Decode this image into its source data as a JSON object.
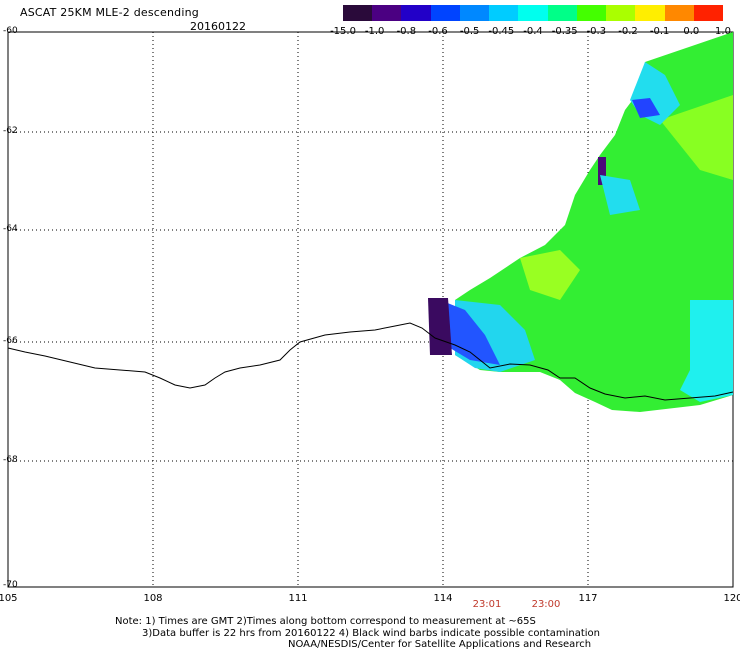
{
  "header": {
    "title": "ASCAT 25KM MLE-2 descending",
    "date": "20160122"
  },
  "colorbar": {
    "labels": [
      "-15.0",
      "-1.0",
      "-0.8",
      "-0.6",
      "-0.5",
      "-0.45",
      "-0.4",
      "-0.35",
      "-0.3",
      "-0.2",
      "-0.1",
      "0.0",
      "1.0"
    ],
    "colors": [
      "#2a0a3a",
      "#4b0082",
      "#2200c8",
      "#0044ff",
      "#0088ff",
      "#00ccff",
      "#00ffee",
      "#00ff88",
      "#44ff00",
      "#aaff00",
      "#ffee00",
      "#ff8800",
      "#ff2200"
    ]
  },
  "axes": {
    "x_ticks": [
      "105",
      "108",
      "111",
      "114",
      "117",
      "120"
    ],
    "y_ticks": [
      "-60",
      "-62",
      "-64",
      "-66",
      "-68",
      "-70"
    ]
  },
  "times": [
    "23:01",
    "23:00"
  ],
  "notes": [
    "Note: 1) Times are GMT 2)Times along bottom correspond to measurement at ~65S",
    "3)Data buffer is 22 hrs from 20160122 4) Black wind barbs indicate possible contamination",
    "NOAA/NESDIS/Center for Satellite Applications and Research"
  ]
}
